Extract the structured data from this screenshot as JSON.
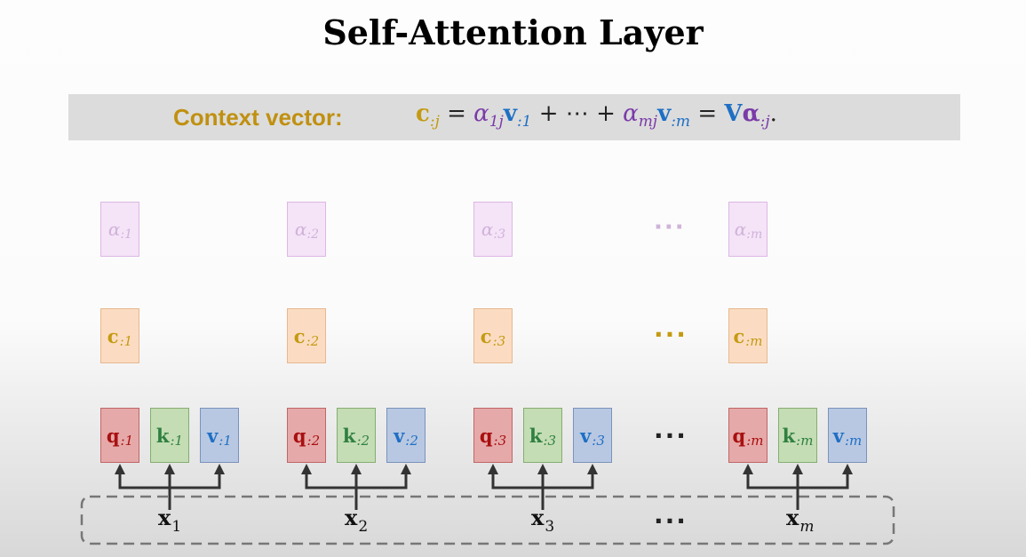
{
  "title": "Self-Attention Layer",
  "banner": {
    "label": "Context vector:",
    "formula": {
      "lhs_symbol": "c",
      "lhs_sub": ":j",
      "eq1": " = ",
      "term1_alpha": "α",
      "term1_alpha_sub": "1j",
      "term1_v": "v",
      "term1_v_sub": ":1",
      "middle": " + ⋯ + ",
      "term2_alpha": "α",
      "term2_alpha_sub": "mj",
      "term2_v": "v",
      "term2_v_sub": ":m",
      "eq2": " = ",
      "rhs_V": "V",
      "rhs_alpha": "α",
      "rhs_alpha_sub": ":j",
      "period": "."
    }
  },
  "columns": [
    {
      "alpha": {
        "symbol": "α",
        "sub": ":1"
      },
      "c": {
        "symbol": "c",
        "sub": ":1"
      },
      "q": {
        "symbol": "q",
        "sub": ":1"
      },
      "k": {
        "symbol": "k",
        "sub": ":1"
      },
      "v": {
        "symbol": "v",
        "sub": ":1"
      },
      "x": {
        "symbol": "x",
        "sub": "1"
      }
    },
    {
      "alpha": {
        "symbol": "α",
        "sub": ":2"
      },
      "c": {
        "symbol": "c",
        "sub": ":2"
      },
      "q": {
        "symbol": "q",
        "sub": ":2"
      },
      "k": {
        "symbol": "k",
        "sub": ":2"
      },
      "v": {
        "symbol": "v",
        "sub": ":2"
      },
      "x": {
        "symbol": "x",
        "sub": "2"
      }
    },
    {
      "alpha": {
        "symbol": "α",
        "sub": ":3"
      },
      "c": {
        "symbol": "c",
        "sub": ":3"
      },
      "q": {
        "symbol": "q",
        "sub": ":3"
      },
      "k": {
        "symbol": "k",
        "sub": ":3"
      },
      "v": {
        "symbol": "v",
        "sub": ":3"
      },
      "x": {
        "symbol": "x",
        "sub": "3"
      }
    },
    {
      "alpha": {
        "symbol": "α",
        "sub": ":m"
      },
      "c": {
        "symbol": "c",
        "sub": ":m"
      },
      "q": {
        "symbol": "q",
        "sub": ":m"
      },
      "k": {
        "symbol": "k",
        "sub": ":m"
      },
      "v": {
        "symbol": "v",
        "sub": ":m"
      },
      "x": {
        "symbol": "x",
        "sub": "m"
      }
    }
  ],
  "ellipsis": "···",
  "colors": {
    "alpha_fill": "#f5e3f8",
    "alpha_border": "#dcb8e4",
    "alpha_text": "#cfb3d9",
    "c_fill": "#fbdcc2",
    "c_border": "#e7b88f",
    "c_text": "#c49a12",
    "q_fill": "#e6a9a9",
    "q_border": "#c06666",
    "q_text": "#a81010",
    "k_fill": "#c4ddb4",
    "k_border": "#86ad72",
    "k_text": "#2f8040",
    "v_fill": "#b8c8e2",
    "v_border": "#7a92bc",
    "v_text": "#1e6fc4",
    "arrow": "#333333",
    "dashed_border": "#777777"
  }
}
